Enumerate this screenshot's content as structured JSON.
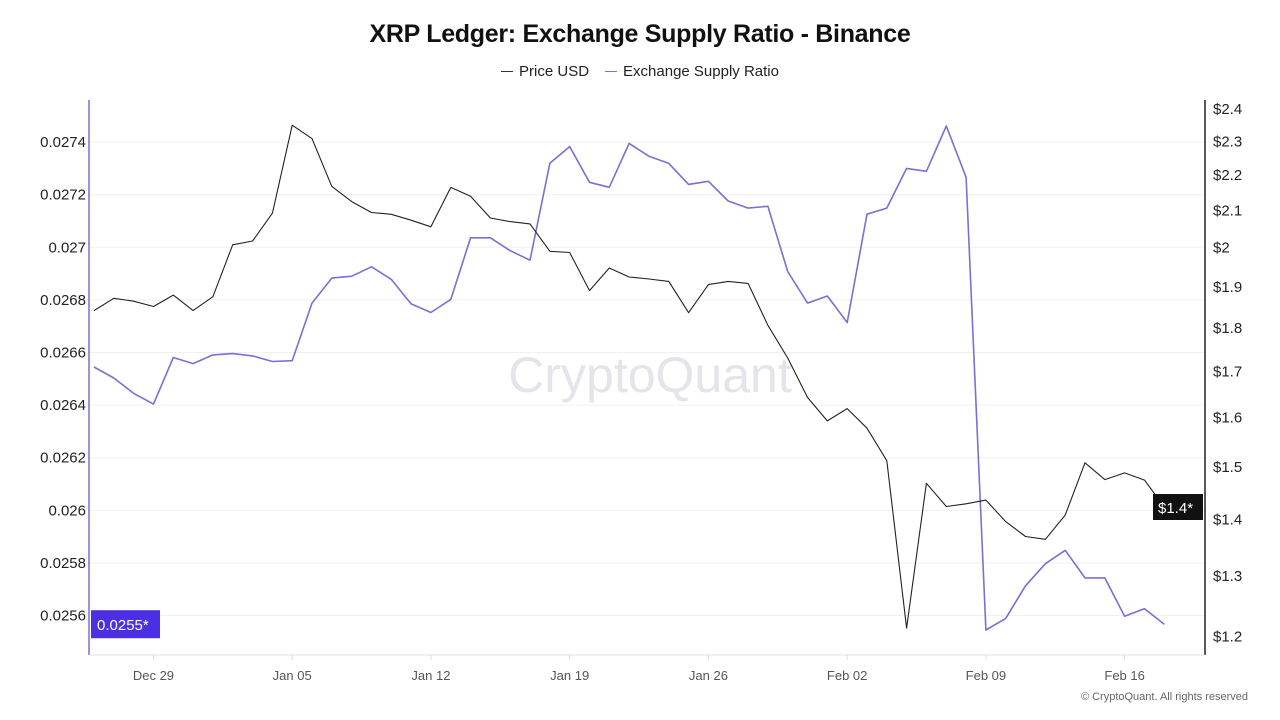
{
  "title": "XRP Ledger: Exchange Supply Ratio - Binance",
  "footer": "© CryptoQuant. All rights reserved",
  "watermark": "CryptoQuant",
  "colors": {
    "price": "#222222",
    "ratio": "#7b6fd6",
    "ratio_marker_bg": "#4b30e3",
    "price_marker_bg": "#111111"
  },
  "chart_data": {
    "type": "line",
    "title": "XRP Ledger: Exchange Supply Ratio - Binance",
    "legend": "top-center",
    "grid": true,
    "x": [
      "Dec 26",
      "Dec 27",
      "Dec 28",
      "Dec 29",
      "Dec 30",
      "Dec 31",
      "Jan 01",
      "Jan 02",
      "Jan 03",
      "Jan 04",
      "Jan 05",
      "Jan 06",
      "Jan 07",
      "Jan 08",
      "Jan 09",
      "Jan 10",
      "Jan 11",
      "Jan 12",
      "Jan 13",
      "Jan 14",
      "Jan 15",
      "Jan 16",
      "Jan 17",
      "Jan 18",
      "Jan 19",
      "Jan 20",
      "Jan 21",
      "Jan 22",
      "Jan 23",
      "Jan 24",
      "Jan 25",
      "Jan 26",
      "Jan 27",
      "Jan 28",
      "Jan 29",
      "Jan 30",
      "Jan 31",
      "Feb 01",
      "Feb 02",
      "Feb 03",
      "Feb 04",
      "Feb 05",
      "Feb 06",
      "Feb 07",
      "Feb 08",
      "Feb 09",
      "Feb 10",
      "Feb 11",
      "Feb 12",
      "Feb 13",
      "Feb 14",
      "Feb 15",
      "Feb 16",
      "Feb 17",
      "Feb 18"
    ],
    "x_ticks": [
      "Dec 29",
      "Jan 05",
      "Jan 12",
      "Jan 19",
      "Jan 26",
      "Feb 02",
      "Feb 09",
      "Feb 16"
    ],
    "left_axis": {
      "scale": "linear",
      "ylim": [
        0.02545,
        0.02756
      ],
      "ticks": [
        0.0256,
        0.0258,
        0.026,
        0.0262,
        0.0264,
        0.0266,
        0.0268,
        0.027,
        0.0272,
        0.0274
      ],
      "tick_labels": [
        "0.0256",
        "0.0258",
        "0.026",
        "0.0262",
        "0.0264",
        "0.0266",
        "0.0268",
        "0.027",
        "0.0272",
        "0.0274"
      ],
      "current_label": "0.0255*"
    },
    "right_axis": {
      "scale": "log",
      "ylim": [
        1.17,
        2.425
      ],
      "ticks": [
        1.2,
        1.3,
        1.4,
        1.5,
        1.6,
        1.7,
        1.8,
        1.9,
        2.0,
        2.1,
        2.2,
        2.3,
        2.4
      ],
      "tick_labels": [
        "$1.2",
        "$1.3",
        "$1.4",
        "$1.5",
        "$1.6",
        "$1.7",
        "$1.8",
        "$1.9",
        "$2",
        "$2.1",
        "$2.2",
        "$2.3",
        "$2.4"
      ],
      "current_label": "$1.4*"
    },
    "series": [
      {
        "name": "Price USD",
        "axis": "right",
        "values": [
          1.839,
          1.869,
          1.862,
          1.849,
          1.877,
          1.839,
          1.873,
          2.005,
          2.015,
          2.09,
          2.346,
          2.305,
          2.165,
          2.122,
          2.092,
          2.087,
          2.071,
          2.053,
          2.162,
          2.137,
          2.077,
          2.067,
          2.061,
          1.988,
          1.985,
          1.888,
          1.945,
          1.922,
          1.917,
          1.911,
          1.834,
          1.903,
          1.911,
          1.906,
          1.804,
          1.728,
          1.641,
          1.591,
          1.617,
          1.576,
          1.51,
          1.212,
          1.466,
          1.422,
          1.427,
          1.434,
          1.394,
          1.367,
          1.362,
          1.406,
          1.506,
          1.473,
          1.486,
          1.472,
          1.421
        ]
      },
      {
        "name": "Exchange Supply Ratio",
        "axis": "left",
        "values": [
          0.026545,
          0.026503,
          0.026445,
          0.026404,
          0.026581,
          0.026558,
          0.026591,
          0.026596,
          0.026587,
          0.026566,
          0.026569,
          0.026788,
          0.026883,
          0.02689,
          0.026926,
          0.026878,
          0.026785,
          0.026752,
          0.026802,
          0.027036,
          0.027036,
          0.026987,
          0.026951,
          0.02732,
          0.027383,
          0.027247,
          0.027228,
          0.027395,
          0.027346,
          0.027319,
          0.027239,
          0.027251,
          0.027176,
          0.027149,
          0.027156,
          0.026908,
          0.026788,
          0.026815,
          0.026714,
          0.027126,
          0.027149,
          0.0273,
          0.027289,
          0.027461,
          0.027266,
          0.025545,
          0.025589,
          0.025713,
          0.025797,
          0.025848,
          0.025743,
          0.025743,
          0.025597,
          0.025626,
          0.025567
        ]
      }
    ]
  }
}
